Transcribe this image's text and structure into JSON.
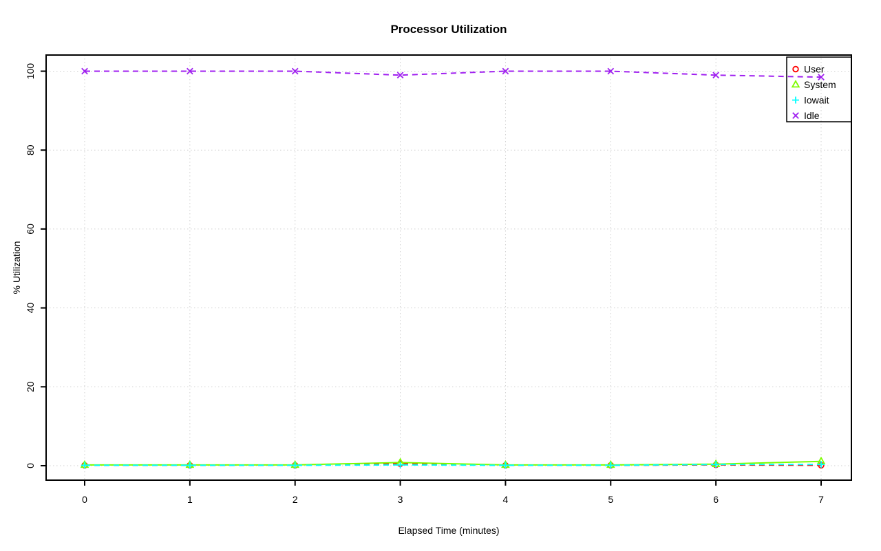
{
  "chart_data": {
    "type": "line",
    "title": "Processor Utilization",
    "xlabel": "Elapsed Time (minutes)",
    "ylabel": "% Utilization",
    "x": [
      0,
      1,
      2,
      3,
      4,
      5,
      6,
      7
    ],
    "xticks": [
      0,
      1,
      2,
      3,
      4,
      5,
      6,
      7
    ],
    "yticks": [
      0,
      20,
      40,
      60,
      80,
      100
    ],
    "xlim": [
      0,
      7
    ],
    "ylim": [
      0,
      100
    ],
    "grid": "dotted",
    "grid_color": "#cfcfcf",
    "legend_position": "top-right",
    "background": "#ffffff",
    "axis_color": "#000000",
    "series": [
      {
        "name": "User",
        "color": "#ff0000",
        "marker": "circle",
        "line": "dashed",
        "values": [
          0.1,
          0.1,
          0.1,
          0.5,
          0.1,
          0.1,
          0.2,
          0.1
        ]
      },
      {
        "name": "System",
        "color": "#7cfc00",
        "marker": "triangle",
        "line": "solid",
        "values": [
          0.2,
          0.2,
          0.2,
          0.8,
          0.2,
          0.2,
          0.4,
          1.1
        ]
      },
      {
        "name": "Iowait",
        "color": "#00ffff",
        "marker": "plus",
        "line": "dashed",
        "values": [
          0.1,
          0.1,
          0.1,
          0.2,
          0.1,
          0.1,
          0.3,
          0.3
        ]
      },
      {
        "name": "Idle",
        "color": "#a020f0",
        "marker": "x",
        "line": "dashed",
        "values": [
          100,
          100,
          100,
          99,
          100,
          100,
          99,
          98.5
        ]
      }
    ]
  }
}
